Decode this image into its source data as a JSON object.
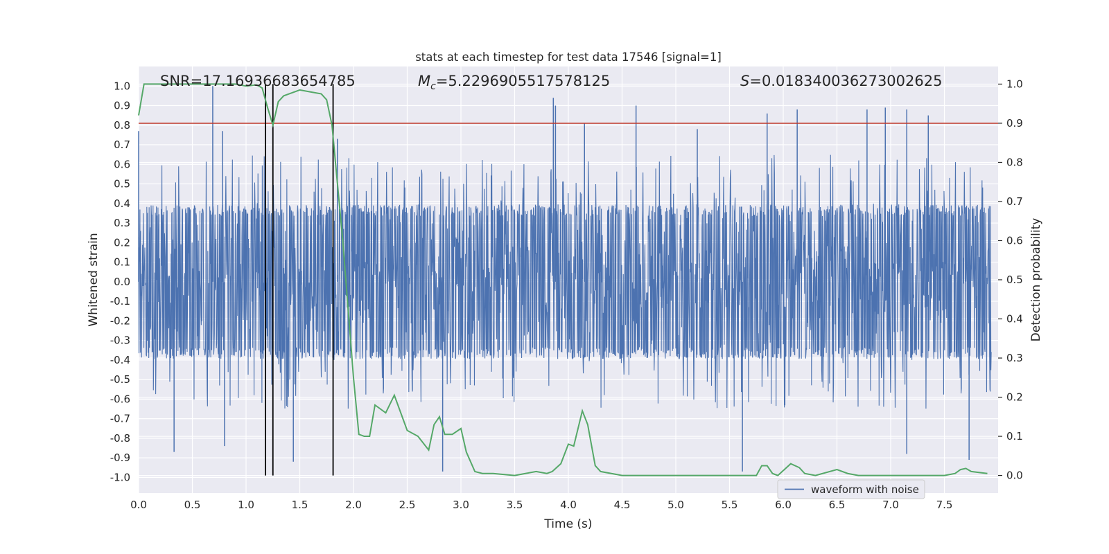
{
  "chart_data": {
    "type": "line",
    "title": "stats at each timestep for test data 17546 [signal=1]",
    "xlabel": "Time (s)",
    "ylabel": "Whitened strain",
    "y2label": "Detection probability",
    "xlim": [
      0.0,
      8.0
    ],
    "ylim": [
      -1.08,
      1.1
    ],
    "y2lim": [
      -0.045,
      1.045
    ],
    "xticks": [
      "0.0",
      "0.5",
      "1.0",
      "1.5",
      "2.0",
      "2.5",
      "3.0",
      "3.5",
      "4.0",
      "4.5",
      "5.0",
      "5.5",
      "6.0",
      "6.5",
      "7.0",
      "7.5"
    ],
    "xtick_values": [
      0.0,
      0.5,
      1.0,
      1.5,
      2.0,
      2.5,
      3.0,
      3.5,
      4.0,
      4.5,
      5.0,
      5.5,
      6.0,
      6.5,
      7.0,
      7.5
    ],
    "yticks": [
      "1.0",
      "0.9",
      "0.8",
      "0.7",
      "0.6",
      "0.5",
      "0.4",
      "0.3",
      "0.2",
      "0.1",
      "0.0",
      "-0.1",
      "-0.2",
      "-0.3",
      "-0.4",
      "-0.5",
      "-0.6",
      "-0.7",
      "-0.8",
      "-0.9",
      "-1.0"
    ],
    "ytick_values": [
      1.0,
      0.9,
      0.8,
      0.7,
      0.6,
      0.5,
      0.4,
      0.3,
      0.2,
      0.1,
      0.0,
      -0.1,
      -0.2,
      -0.3,
      -0.4,
      -0.5,
      -0.6,
      -0.7,
      -0.8,
      -0.9,
      -1.0
    ],
    "y2ticks": [
      "1.0",
      "0.9",
      "0.8",
      "0.7",
      "0.6",
      "0.5",
      "0.4",
      "0.3",
      "0.2",
      "0.1",
      "0.0"
    ],
    "y2tick_values": [
      1.0,
      0.9,
      0.8,
      0.7,
      0.6,
      0.5,
      0.4,
      0.3,
      0.2,
      0.1,
      0.0
    ],
    "annotations": [
      {
        "text": "SNR=17.16936683654785",
        "x": 0.2
      },
      {
        "prefix_italic": "M",
        "subscript": "c",
        "text": "=5.2296905517578125",
        "x": 2.6
      },
      {
        "prefix_italic": "S",
        "text": "=0.018340036273002625",
        "x": 5.6
      }
    ],
    "threshold": {
      "y2": 0.9,
      "color": "#c0392b"
    },
    "vertical_markers": [
      1.18,
      1.25,
      1.81
    ],
    "legend": {
      "label": "waveform with noise",
      "position": "lower right"
    },
    "grid": true,
    "colors": {
      "waveform": "#4c72b0",
      "probability": "#55a868",
      "threshold": "#c0392b",
      "markers": "#000000",
      "background": "#eaeaf2"
    },
    "series": [
      {
        "name": "waveform with noise",
        "axis": "left",
        "kind": "noise",
        "band": [
          -0.38,
          0.41
        ],
        "notable_peaks": [
          [
            0.0,
            0.77
          ],
          [
            0.69,
            1.0
          ],
          [
            0.78,
            0.77
          ],
          [
            1.85,
            0.73
          ],
          [
            3.86,
            0.94
          ],
          [
            3.88,
            0.9
          ],
          [
            4.15,
            0.81
          ],
          [
            4.63,
            0.9
          ],
          [
            5.2,
            0.78
          ],
          [
            5.85,
            0.86
          ],
          [
            6.13,
            0.88
          ],
          [
            6.78,
            0.88
          ],
          [
            6.95,
            0.89
          ],
          [
            7.15,
            0.88
          ],
          [
            7.35,
            0.85
          ],
          [
            0.33,
            -0.87
          ],
          [
            0.8,
            -0.84
          ],
          [
            1.44,
            -0.92
          ],
          [
            2.83,
            -0.97
          ],
          [
            5.62,
            -0.97
          ],
          [
            7.15,
            -0.88
          ],
          [
            7.73,
            -0.91
          ]
        ]
      },
      {
        "name": "",
        "axis": "right",
        "kind": "line",
        "x": [
          0.0,
          0.05,
          0.15,
          0.3,
          0.5,
          0.7,
          0.9,
          1.0,
          1.1,
          1.15,
          1.2,
          1.25,
          1.3,
          1.35,
          1.4,
          1.5,
          1.6,
          1.7,
          1.75,
          1.8,
          1.9,
          2.0,
          2.05,
          2.1,
          2.15,
          2.2,
          2.3,
          2.38,
          2.5,
          2.6,
          2.7,
          2.75,
          2.8,
          2.85,
          2.92,
          3.0,
          3.05,
          3.13,
          3.2,
          3.3,
          3.5,
          3.6,
          3.7,
          3.8,
          3.85,
          3.93,
          4.0,
          4.05,
          4.13,
          4.18,
          4.25,
          4.3,
          4.4,
          4.5,
          4.7,
          5.0,
          5.2,
          5.5,
          5.75,
          5.8,
          5.85,
          5.9,
          5.95,
          6.07,
          6.15,
          6.2,
          6.3,
          6.5,
          6.6,
          6.7,
          6.9,
          7.2,
          7.5,
          7.6,
          7.65,
          7.7,
          7.75,
          7.9
        ],
        "y": [
          0.92,
          1.0,
          1.0,
          1.0,
          1.0,
          1.0,
          1.0,
          0.995,
          0.998,
          0.99,
          0.94,
          0.895,
          0.955,
          0.97,
          0.975,
          0.985,
          0.98,
          0.975,
          0.96,
          0.895,
          0.6,
          0.25,
          0.105,
          0.1,
          0.1,
          0.18,
          0.16,
          0.205,
          0.115,
          0.1,
          0.065,
          0.13,
          0.15,
          0.105,
          0.105,
          0.12,
          0.06,
          0.01,
          0.005,
          0.005,
          0.0,
          0.005,
          0.01,
          0.005,
          0.01,
          0.03,
          0.08,
          0.075,
          0.165,
          0.13,
          0.025,
          0.01,
          0.005,
          0.0,
          0.0,
          0.0,
          0.0,
          0.0,
          0.0,
          0.025,
          0.025,
          0.005,
          0.0,
          0.03,
          0.02,
          0.005,
          0.0,
          0.015,
          0.005,
          0.0,
          0.0,
          0.0,
          0.0,
          0.005,
          0.015,
          0.018,
          0.01,
          0.005
        ]
      }
    ]
  }
}
